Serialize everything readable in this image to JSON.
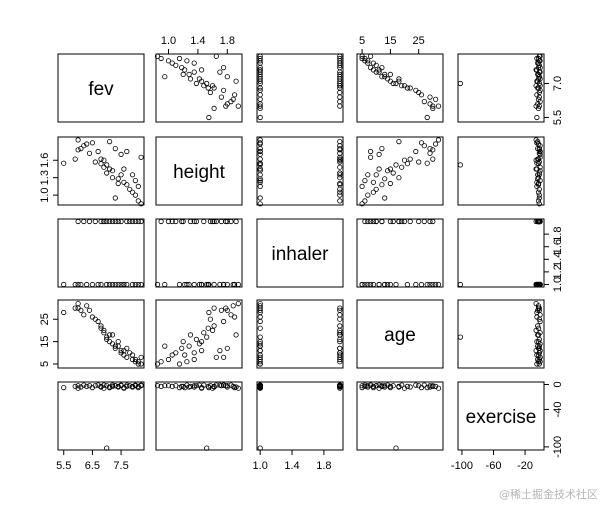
{
  "chart_data": {
    "type": "scatter",
    "title": "",
    "variables": [
      {
        "name": "fev",
        "range": [
          5.3,
          8.3
        ],
        "ticks": [
          5.5,
          6.5,
          7.5
        ],
        "tick_labels": [
          "5.5",
          "6.5",
          "7.5"
        ],
        "right_ticks": [
          5.5,
          7.0
        ],
        "right_tick_labels": [
          "5.5",
          "7.0"
        ]
      },
      {
        "name": "height",
        "range": [
          0.83,
          2.0
        ],
        "ticks": [
          1.0,
          1.4,
          1.8
        ],
        "tick_labels": [
          "1.0",
          "1.4",
          "1.8"
        ],
        "left_ticks": [
          1.0,
          1.3,
          1.6
        ],
        "left_tick_labels": [
          "1.0",
          "1.3",
          "1.6"
        ]
      },
      {
        "name": "inhaler",
        "range": [
          0.96,
          2.04
        ],
        "ticks": [
          1.0,
          1.4,
          1.8
        ],
        "tick_labels": [
          "1.0",
          "1.4",
          "1.8"
        ],
        "right_ticks": [
          1.0,
          1.2,
          1.4,
          1.6,
          1.8
        ],
        "right_tick_labels": [
          "1.0",
          "1.2",
          "1.4",
          "1.6",
          "1.8"
        ]
      },
      {
        "name": "age",
        "range": [
          3.2,
          33.6
        ],
        "ticks": [
          5,
          15,
          25
        ],
        "tick_labels": [
          "5",
          "15",
          "25"
        ],
        "left_ticks": [
          5,
          15,
          25
        ],
        "left_tick_labels": [
          "5",
          "15",
          "25"
        ]
      },
      {
        "name": "exercise",
        "range": [
          -105,
          4
        ],
        "ticks": [
          -100,
          -60,
          -20
        ],
        "tick_labels": [
          "-100",
          "-60",
          "-20"
        ],
        "right_ticks": [
          -100,
          -40,
          0
        ],
        "right_tick_labels": [
          "-100",
          "-40",
          "0"
        ]
      }
    ],
    "observations": [
      {
        "fev": 5.5,
        "height": 1.55,
        "inhaler": 1,
        "age": 28,
        "exercise": -5
      },
      {
        "fev": 5.9,
        "height": 1.62,
        "inhaler": 1,
        "age": 30,
        "exercise": -3
      },
      {
        "fev": 6.0,
        "height": 1.78,
        "inhaler": 2,
        "age": 30,
        "exercise": -2
      },
      {
        "fev": 6.1,
        "height": 1.8,
        "inhaler": 1,
        "age": 29,
        "exercise": -4
      },
      {
        "fev": 6.2,
        "height": 1.85,
        "inhaler": 2,
        "age": 27,
        "exercise": -1
      },
      {
        "fev": 6.3,
        "height": 1.88,
        "inhaler": 1,
        "age": 31,
        "exercise": -3
      },
      {
        "fev": 6.4,
        "height": 1.72,
        "inhaler": 2,
        "age": 29,
        "exercise": -2
      },
      {
        "fev": 6.5,
        "height": 1.9,
        "inhaler": 1,
        "age": 26,
        "exercise": -5
      },
      {
        "fev": 6.6,
        "height": 1.57,
        "inhaler": 2,
        "age": 25,
        "exercise": -2
      },
      {
        "fev": 6.7,
        "height": 1.75,
        "inhaler": 1,
        "age": 24,
        "exercise": -1
      },
      {
        "fev": 6.8,
        "height": 1.62,
        "inhaler": 2,
        "age": 22,
        "exercise": -4
      },
      {
        "fev": 6.8,
        "height": 1.54,
        "inhaler": 1,
        "age": 21,
        "exercise": -3
      },
      {
        "fev": 6.9,
        "height": 1.48,
        "inhaler": 2,
        "age": 19,
        "exercise": -1
      },
      {
        "fev": 7.0,
        "height": 1.52,
        "inhaler": 1,
        "age": 17,
        "exercise": -102
      },
      {
        "fev": 7.0,
        "height": 1.38,
        "inhaler": 2,
        "age": 16,
        "exercise": -2
      },
      {
        "fev": 7.1,
        "height": 1.45,
        "inhaler": 1,
        "age": 15,
        "exercise": -5
      },
      {
        "fev": 7.2,
        "height": 1.3,
        "inhaler": 2,
        "age": 18,
        "exercise": -3
      },
      {
        "fev": 7.2,
        "height": 1.42,
        "inhaler": 1,
        "age": 14,
        "exercise": -1
      },
      {
        "fev": 7.3,
        "height": 1.8,
        "inhaler": 2,
        "age": 12,
        "exercise": -2
      },
      {
        "fev": 7.4,
        "height": 1.28,
        "inhaler": 1,
        "age": 13,
        "exercise": -4
      },
      {
        "fev": 7.4,
        "height": 1.2,
        "inhaler": 2,
        "age": 15,
        "exercise": -3
      },
      {
        "fev": 7.5,
        "height": 1.7,
        "inhaler": 1,
        "age": 11,
        "exercise": -1
      },
      {
        "fev": 7.5,
        "height": 1.35,
        "inhaler": 2,
        "age": 10,
        "exercise": -2
      },
      {
        "fev": 7.6,
        "height": 1.22,
        "inhaler": 1,
        "age": 9,
        "exercise": -5
      },
      {
        "fev": 7.7,
        "height": 1.18,
        "inhaler": 2,
        "age": 12,
        "exercise": -3
      },
      {
        "fev": 7.7,
        "height": 1.75,
        "inhaler": 1,
        "age": 8,
        "exercise": -1
      },
      {
        "fev": 7.8,
        "height": 1.1,
        "inhaler": 2,
        "age": 10,
        "exercise": -2
      },
      {
        "fev": 7.9,
        "height": 1.35,
        "inhaler": 1,
        "age": 7,
        "exercise": -4
      },
      {
        "fev": 7.9,
        "height": 1.05,
        "inhaler": 2,
        "age": 9,
        "exercise": -3
      },
      {
        "fev": 8.0,
        "height": 1.25,
        "inhaler": 1,
        "age": 6,
        "exercise": -1
      },
      {
        "fev": 8.0,
        "height": 1.0,
        "inhaler": 2,
        "age": 7,
        "exercise": -2
      },
      {
        "fev": 8.1,
        "height": 1.15,
        "inhaler": 1,
        "age": 5,
        "exercise": -5
      },
      {
        "fev": 8.1,
        "height": 0.9,
        "inhaler": 2,
        "age": 6,
        "exercise": -3
      },
      {
        "fev": 8.2,
        "height": 0.85,
        "inhaler": 1,
        "age": 5,
        "exercise": -2
      },
      {
        "fev": 8.2,
        "height": 1.65,
        "inhaler": 2,
        "age": 8,
        "exercise": -1
      },
      {
        "fev": 6.0,
        "height": 1.95,
        "inhaler": 1,
        "age": 32,
        "exercise": -6
      },
      {
        "fev": 6.9,
        "height": 1.6,
        "inhaler": 2,
        "age": 20,
        "exercise": -6
      },
      {
        "fev": 7.6,
        "height": 1.45,
        "inhaler": 1,
        "age": 11,
        "exercise": -6
      },
      {
        "fev": 7.1,
        "height": 1.92,
        "inhaler": 2,
        "age": 18,
        "exercise": -4
      },
      {
        "fev": 7.3,
        "height": 0.95,
        "inhaler": 1,
        "age": 13,
        "exercise": -2
      }
    ]
  },
  "watermark": "@稀土掘金技术社区"
}
